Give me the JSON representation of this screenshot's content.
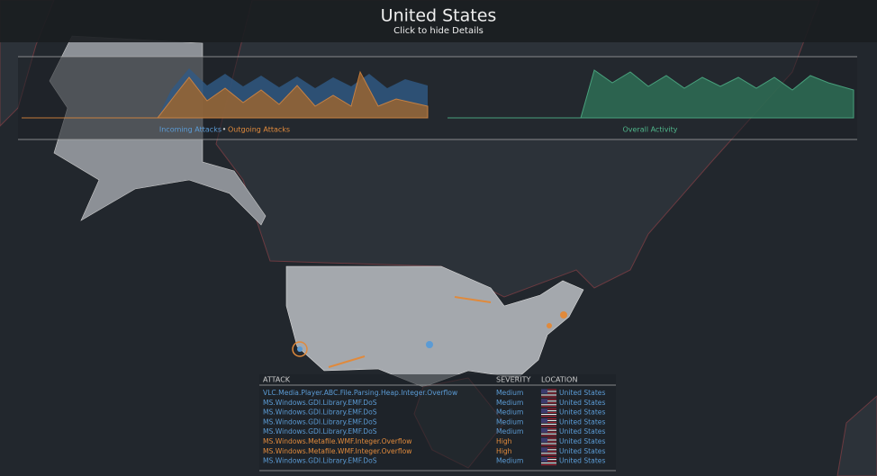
{
  "header": {
    "title": "United States",
    "subtitle": "Click to hide Details"
  },
  "charts": {
    "incoming_label": "Incoming Attacks",
    "separator": "•",
    "outgoing_label": "Outgoing Attacks",
    "overall_label": "Overall Activity"
  },
  "table": {
    "headers": [
      "ATTACK",
      "SEVERITY",
      "LOCATION"
    ],
    "rows": [
      {
        "attack": "VLC.Media.Player.ABC.File.Parsing.Heap.Integer.Overflow",
        "severity": "Medium",
        "location": "United States",
        "color": "#5b9bd5"
      },
      {
        "attack": "MS.Windows.GDI.Library.EMF.DoS",
        "severity": "Medium",
        "location": "United States",
        "color": "#5b9bd5"
      },
      {
        "attack": "MS.Windows.GDI.Library.EMF.DoS",
        "severity": "Medium",
        "location": "United States",
        "color": "#5b9bd5"
      },
      {
        "attack": "MS.Windows.GDI.Library.EMF.DoS",
        "severity": "Medium",
        "location": "United States",
        "color": "#5b9bd5"
      },
      {
        "attack": "MS.Windows.GDI.Library.EMF.DoS",
        "severity": "Medium",
        "location": "United States",
        "color": "#5b9bd5"
      },
      {
        "attack": "MS.Windows.Metafile.WMF.Integer.Overflow",
        "severity": "High",
        "location": "United States",
        "color": "#e08a3c"
      },
      {
        "attack": "MS.Windows.Metafile.WMF.Integer.Overflow",
        "severity": "High",
        "location": "United States",
        "color": "#e08a3c"
      },
      {
        "attack": "MS.Windows.GDI.Library.EMF.DoS",
        "severity": "Medium",
        "location": "United States",
        "color": "#5b9bd5"
      }
    ]
  }
}
